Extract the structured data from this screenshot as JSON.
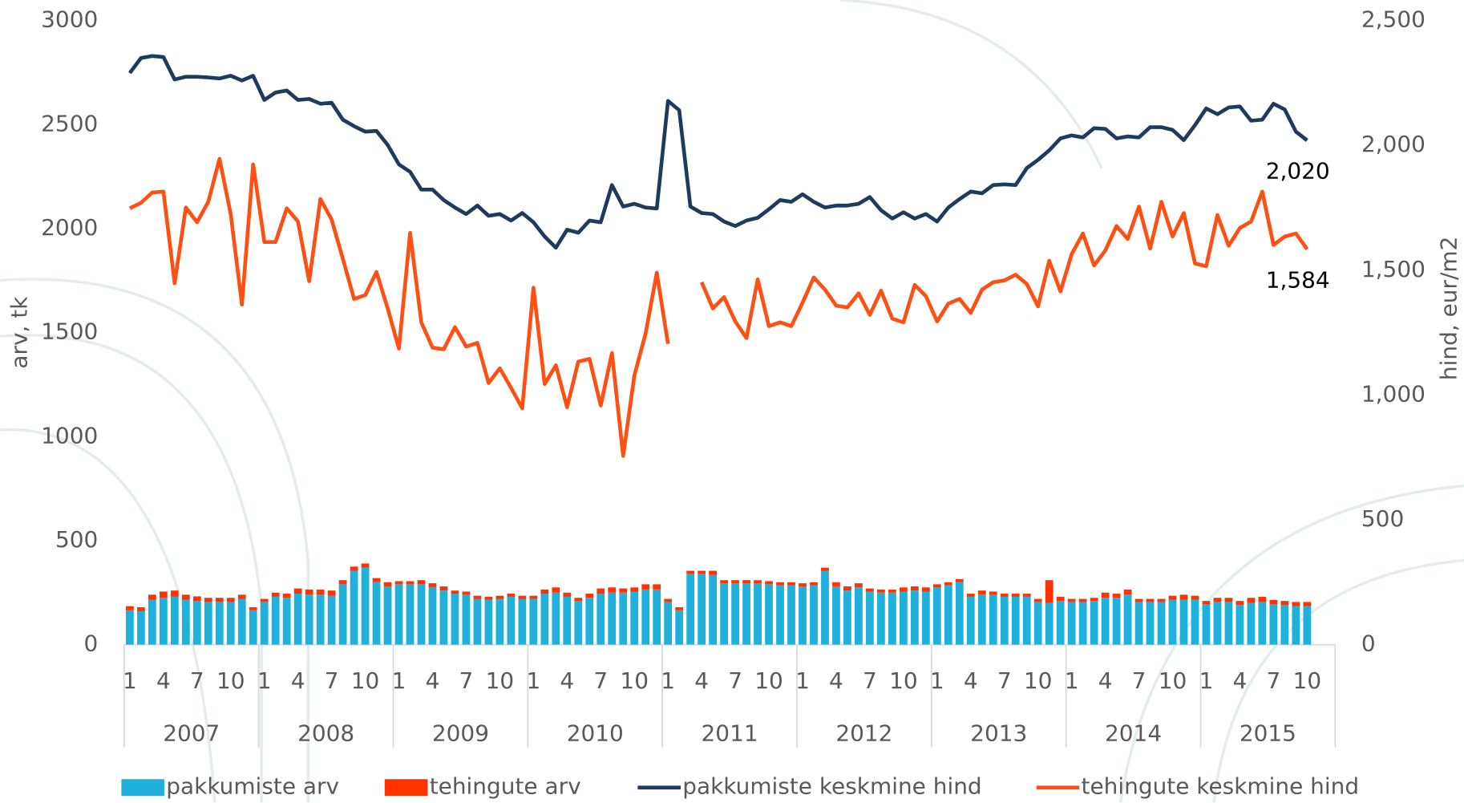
{
  "chart_data": {
    "type": "bar-line",
    "categories": [
      "1",
      null,
      null,
      "4",
      null,
      null,
      "7",
      null,
      null,
      "10",
      null,
      null,
      "1",
      null,
      null,
      "4",
      null,
      null,
      "7",
      null,
      null,
      "10",
      null,
      null,
      "1",
      null,
      null,
      "4",
      null,
      null,
      "7",
      null,
      null,
      "10",
      null,
      null,
      "1",
      null,
      null,
      "4",
      null,
      null,
      "7",
      null,
      null,
      "10",
      null,
      null,
      "1",
      null,
      null,
      "4",
      null,
      null,
      "7",
      null,
      null,
      "10",
      null,
      null,
      "1",
      null,
      null,
      "4",
      null,
      null,
      "7",
      null,
      null,
      "10",
      null,
      null,
      "1",
      null,
      null,
      "4",
      null,
      null,
      "7",
      null,
      null,
      "10",
      null,
      null,
      "1",
      null,
      null,
      "4",
      null,
      null,
      "7",
      null,
      null,
      "10",
      null,
      null,
      "1",
      null,
      null,
      "4",
      null,
      null,
      "7",
      null,
      null,
      "10",
      null,
      null
    ],
    "groups": [
      "2007",
      "2008",
      "2009",
      "2010",
      "2011",
      "2012",
      "2013",
      "2014",
      "2015"
    ],
    "ylabel": "arv, tk",
    "y2label": "hind, eur/m2",
    "ylim": [
      0,
      3000
    ],
    "yticks": [
      0,
      500,
      1000,
      1500,
      2000,
      2500,
      3000
    ],
    "y2lim": [
      0,
      2500
    ],
    "y2ticks": [
      0,
      500,
      {
        "value": 1000,
        "label": "1,000"
      },
      {
        "value": 1500,
        "label": "1,500"
      },
      {
        "value": 2000,
        "label": "2,000"
      },
      {
        "value": 2500,
        "label": "2,500"
      }
    ],
    "grid": false,
    "legend": "bottom",
    "series": [
      {
        "name": "pakkumiste arv",
        "type": "bar",
        "stack": true,
        "color": "#1fb0dc",
        "values": [
          165,
          160,
          215,
          225,
          230,
          215,
          210,
          205,
          205,
          205,
          220,
          165,
          205,
          230,
          225,
          245,
          240,
          240,
          235,
          290,
          355,
          370,
          300,
          280,
          290,
          290,
          290,
          275,
          260,
          245,
          240,
          220,
          215,
          220,
          230,
          220,
          220,
          245,
          250,
          230,
          210,
          225,
          245,
          250,
          250,
          255,
          265,
          265,
          205,
          165,
          340,
          340,
          335,
          295,
          295,
          295,
          295,
          290,
          285,
          285,
          280,
          285,
          355,
          280,
          260,
          275,
          255,
          250,
          250,
          255,
          260,
          255,
          275,
          285,
          300,
          230,
          240,
          240,
          230,
          230,
          230,
          205,
          200,
          210,
          205,
          205,
          210,
          225,
          225,
          240,
          205,
          205,
          205,
          215,
          215,
          215,
          195,
          205,
          205,
          190,
          200,
          205,
          195,
          190,
          185,
          185,
          null,
          null
        ]
      },
      {
        "name": "tehingute arv",
        "type": "bar",
        "stack": true,
        "color": "#ff3300",
        "values": [
          20,
          20,
          25,
          30,
          30,
          25,
          22,
          20,
          20,
          20,
          20,
          15,
          15,
          20,
          20,
          25,
          25,
          25,
          25,
          20,
          20,
          20,
          20,
          20,
          15,
          15,
          20,
          20,
          20,
          15,
          15,
          15,
          15,
          15,
          15,
          15,
          15,
          20,
          25,
          20,
          15,
          20,
          25,
          25,
          20,
          20,
          25,
          25,
          15,
          15,
          15,
          15,
          20,
          15,
          15,
          15,
          15,
          15,
          15,
          15,
          15,
          15,
          15,
          20,
          20,
          20,
          15,
          15,
          15,
          20,
          20,
          20,
          15,
          15,
          15,
          15,
          20,
          15,
          15,
          15,
          15,
          15,
          110,
          20,
          15,
          15,
          15,
          25,
          20,
          25,
          15,
          15,
          15,
          20,
          25,
          20,
          15,
          20,
          20,
          20,
          25,
          25,
          20,
          20,
          20,
          20,
          null,
          null
        ]
      },
      {
        "name": "pakkumiste keskmine hind",
        "type": "line",
        "axis": "y2",
        "color": "#1f3a5f",
        "values": [
          2290,
          2350,
          2358,
          2354,
          2264,
          2275,
          2275,
          2272,
          2268,
          2279,
          2260,
          2279,
          2182,
          2212,
          2220,
          2182,
          2186,
          2167,
          2171,
          2103,
          2077,
          2055,
          2058,
          2002,
          1924,
          1894,
          1823,
          1823,
          1781,
          1751,
          1725,
          1759,
          1718,
          1725,
          1699,
          1729,
          1692,
          1635,
          1590,
          1662,
          1650,
          1699,
          1692,
          1841,
          1755,
          1766,
          1751,
          1747,
          2178,
          2141,
          1755,
          1729,
          1725,
          1695,
          1677,
          1699,
          1710,
          1744,
          1781,
          1774,
          1804,
          1774,
          1751,
          1759,
          1759,
          1766,
          1793,
          1740,
          1707,
          1732,
          1707,
          1725,
          1695,
          1751,
          1785,
          1815,
          1808,
          1841,
          1844,
          1841,
          1909,
          1942,
          1980,
          2028,
          2040,
          2032,
          2069,
          2066,
          2028,
          2036,
          2032,
          2073,
          2073,
          2062,
          2021,
          2081,
          2148,
          2125,
          2152,
          2156,
          2099,
          2103,
          2167,
          2144,
          2055,
          2020,
          null,
          null
        ],
        "value_labels": [
          null,
          null,
          null,
          null,
          null,
          null,
          null,
          null,
          null,
          null,
          null,
          null,
          null,
          null,
          null,
          null,
          null,
          null,
          null,
          null,
          null,
          null,
          null,
          null,
          null,
          null,
          null,
          null,
          null,
          null,
          null,
          null,
          null,
          null,
          null,
          null,
          null,
          null,
          null,
          null,
          null,
          null,
          null,
          null,
          null,
          null,
          null,
          null,
          null,
          null,
          null,
          null,
          null,
          null,
          null,
          null,
          null,
          null,
          null,
          null,
          null,
          null,
          null,
          null,
          null,
          null,
          null,
          null,
          null,
          null,
          null,
          null,
          null,
          null,
          null,
          null,
          null,
          null,
          null,
          null,
          null,
          null,
          null,
          null,
          null,
          null,
          null,
          null,
          null,
          null,
          null,
          null,
          null,
          null,
          null,
          null,
          null,
          null,
          null,
          null,
          null,
          null,
          null,
          null,
          null,
          "2,020",
          null,
          null
        ]
      },
      {
        "name": "tehingute keskmine hind",
        "type": "line",
        "axis": "y2",
        "color": "#ff5014",
        "values": [
          1748,
          1770,
          1811,
          1815,
          1448,
          1751,
          1692,
          1774,
          1946,
          1725,
          1362,
          1924,
          1613,
          1613,
          1748,
          1695,
          1456,
          1785,
          1703,
          1546,
          1385,
          1400,
          1493,
          1347,
          1186,
          1650,
          1291,
          1190,
          1183,
          1272,
          1194,
          1209,
          1048,
          1107,
          1029,
          947,
          1430,
          1044,
          1119,
          951,
          1134,
          1145,
          958,
          1168,
          756,
          1078,
          1246,
          1490,
          1205,
          null,
          null,
          1452,
          1347,
          1392,
          1295,
          1228,
          1463,
          1276,
          1291,
          1276,
          1370,
          1471,
          1422,
          1358,
          1351,
          1407,
          1321,
          1418,
          1306,
          1291,
          1441,
          1396,
          1295,
          1366,
          1385,
          1329,
          1422,
          1452,
          1459,
          1482,
          1445,
          1355,
          1538,
          1415,
          1564,
          1647,
          1519,
          1579,
          1677,
          1625,
          1755,
          1587,
          1774,
          1635,
          1729,
          1527,
          1516,
          1721,
          1598,
          1669,
          1695,
          1815,
          1601,
          1635,
          1647,
          1584,
          null,
          null
        ],
        "value_labels": [
          null,
          null,
          null,
          null,
          null,
          null,
          null,
          null,
          null,
          null,
          null,
          null,
          null,
          null,
          null,
          null,
          null,
          null,
          null,
          null,
          null,
          null,
          null,
          null,
          null,
          null,
          null,
          null,
          null,
          null,
          null,
          null,
          null,
          null,
          null,
          null,
          null,
          null,
          null,
          null,
          null,
          null,
          null,
          null,
          null,
          null,
          null,
          null,
          null,
          null,
          null,
          null,
          null,
          null,
          null,
          null,
          null,
          null,
          null,
          null,
          null,
          null,
          null,
          null,
          null,
          null,
          null,
          null,
          null,
          null,
          null,
          null,
          null,
          null,
          null,
          null,
          null,
          null,
          null,
          null,
          null,
          null,
          null,
          null,
          null,
          null,
          null,
          null,
          null,
          null,
          null,
          null,
          null,
          null,
          null,
          null,
          null,
          null,
          null,
          null,
          null,
          null,
          null,
          null,
          null,
          "1,584",
          null,
          null
        ]
      }
    ]
  }
}
